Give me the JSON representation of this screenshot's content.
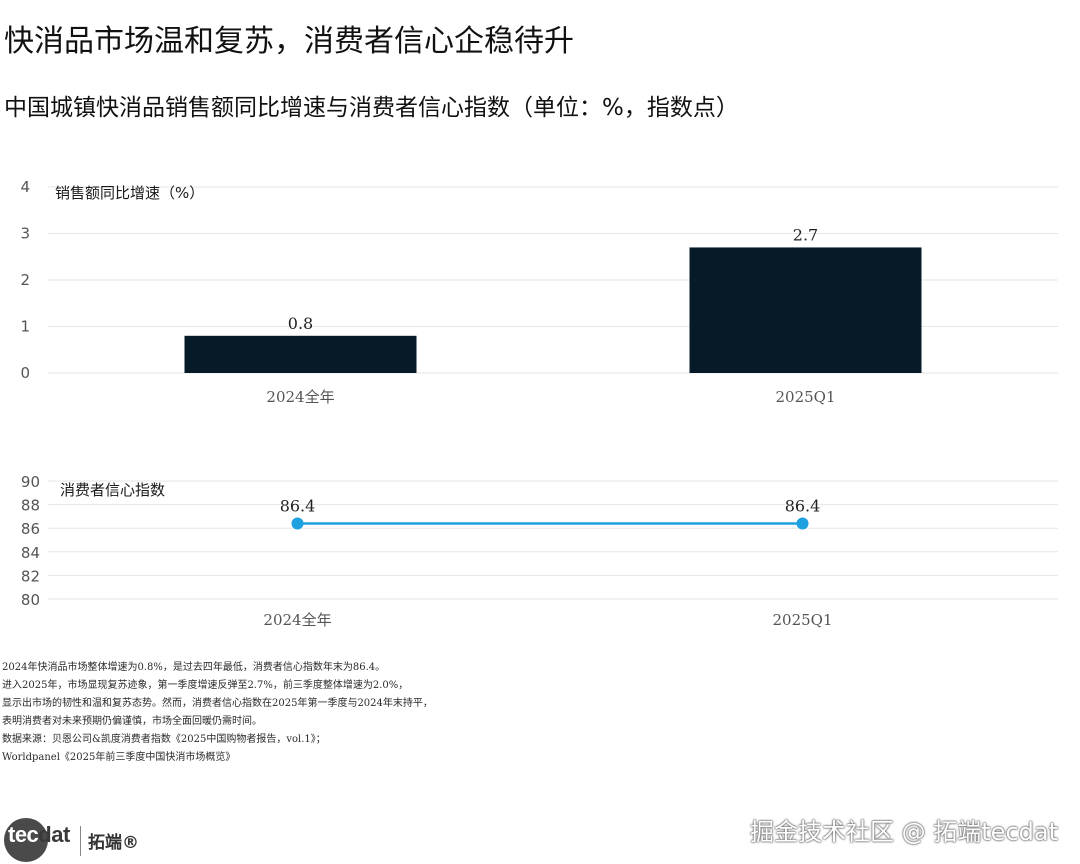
{
  "title": "快消品市场温和复苏，消费者信心企稳待升",
  "subtitle": "中国城镇快消品销售额同比增速与消费者信心指数（单位：%，指数点）",
  "chart_data": [
    {
      "type": "bar",
      "label": "销售额同比增速（%）",
      "categories": [
        "2024全年",
        "2025Q1"
      ],
      "values": [
        0.8,
        2.7
      ],
      "value_labels": [
        "0.8",
        "2.7"
      ],
      "ylim": [
        0,
        4
      ],
      "yticks": [
        "0",
        "1",
        "2",
        "3",
        "4"
      ],
      "grid": true,
      "color": "#061a28"
    },
    {
      "type": "line",
      "label": "消费者信心指数",
      "categories": [
        "2024全年",
        "2025Q1"
      ],
      "values": [
        86.4,
        86.4
      ],
      "value_labels": [
        "86.4",
        "86.4"
      ],
      "ylim": [
        80,
        90
      ],
      "yticks": [
        "80",
        "82",
        "84",
        "86",
        "88",
        "90"
      ],
      "grid": true,
      "color": "#1fa0e0"
    }
  ],
  "notes": [
    "2024年快消品市场整体增速为0.8%，是过去四年最低，消费者信心指数年末为86.4。",
    "进入2025年，市场显现复苏迹象，第一季度增速反弹至2.7%，前三季度整体增速为2.0%，",
    "显示出市场的韧性和温和复苏态势。然而，消费者信心指数在2025年第一季度与2024年末持平，",
    "表明消费者对未来预期仍偏谨慎，市场全面回暖仍需时间。",
    "数据来源：贝恩公司&凯度消费者指数《2025中国购物者报告，vol.1》；",
    "Worldpanel《2025年前三季度中国快消市场概览》"
  ],
  "logo": {
    "word_head": "tec",
    "word_tail": "dat",
    "cn": "拓端®"
  },
  "watermark": "掘金技术社区 @ 拓端tecdat"
}
